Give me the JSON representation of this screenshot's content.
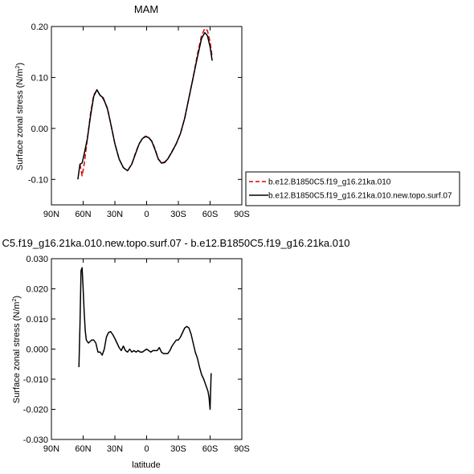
{
  "chart_data": [
    {
      "type": "line",
      "title": "MAM",
      "xlabel": "",
      "ylabel": "Surface zonal stress (N/m",
      "ylabel_sup": "2",
      "ylabel_close": ")",
      "xlim": [
        90,
        -90
      ],
      "ylim": [
        -0.15,
        0.2
      ],
      "x_ticks": [
        90,
        60,
        30,
        0,
        -30,
        -60,
        -90
      ],
      "x_tick_labels": [
        "90N",
        "60N",
        "30N",
        "0",
        "30S",
        "60S",
        "90S"
      ],
      "y_ticks": [
        0.2,
        0.1,
        0.0,
        -0.1
      ],
      "y_tick_labels": [
        "0.20",
        "0.10",
        "0.00",
        "-0.10"
      ],
      "legend": "right",
      "series": [
        {
          "name": "b.e12.B1850C5.f19_g16.21ka.010",
          "color": "#dd0000",
          "dash": true,
          "x": [
            63,
            61,
            59,
            56,
            53,
            50,
            47,
            44,
            41,
            37,
            34,
            30,
            26,
            22,
            18,
            14,
            10,
            7,
            4,
            1,
            -2,
            -5,
            -8,
            -11,
            -14,
            -17,
            -20,
            -24,
            -28,
            -32,
            -36,
            -40,
            -44,
            -48,
            -52,
            -55,
            -57.5,
            -60,
            -62
          ],
          "y": [
            -0.07,
            -0.093,
            -0.07,
            -0.02,
            0.03,
            0.066,
            0.075,
            0.065,
            0.058,
            0.04,
            0.01,
            -0.03,
            -0.06,
            -0.077,
            -0.083,
            -0.07,
            -0.045,
            -0.03,
            -0.02,
            -0.015,
            -0.018,
            -0.025,
            -0.04,
            -0.06,
            -0.067,
            -0.066,
            -0.06,
            -0.045,
            -0.03,
            -0.01,
            0.02,
            0.06,
            0.1,
            0.145,
            0.183,
            0.196,
            0.192,
            0.17,
            0.14
          ]
        },
        {
          "name": "b.e12.B1850C5.f19_g16.21ka.010.new.topo.surf.07",
          "color": "#000000",
          "dash": false,
          "x": [
            65,
            63,
            61,
            59,
            56,
            53,
            50,
            47,
            44,
            41,
            37,
            34,
            30,
            26,
            22,
            18,
            14,
            10,
            7,
            4,
            1,
            -2,
            -5,
            -8,
            -11,
            -14,
            -17,
            -20,
            -24,
            -28,
            -32,
            -36,
            -40,
            -44,
            -48,
            -52,
            -55,
            -57.5,
            -60,
            -62
          ],
          "y": [
            -0.1,
            -0.07,
            -0.068,
            -0.05,
            -0.02,
            0.025,
            0.063,
            0.076,
            0.065,
            0.06,
            0.038,
            0.01,
            -0.03,
            -0.06,
            -0.077,
            -0.083,
            -0.07,
            -0.047,
            -0.03,
            -0.02,
            -0.016,
            -0.018,
            -0.026,
            -0.042,
            -0.06,
            -0.068,
            -0.067,
            -0.06,
            -0.046,
            -0.03,
            -0.01,
            0.02,
            0.06,
            0.1,
            0.14,
            0.177,
            0.188,
            0.182,
            0.16,
            0.133
          ]
        }
      ]
    },
    {
      "type": "line",
      "title": "C5.f19_g16.21ka.010.new.topo.surf.07 - b.e12.B1850C5.f19_g16.21ka.010",
      "xlabel": "latitude",
      "ylabel": "Surface zonal stress (N/m",
      "ylabel_sup": "2",
      "ylabel_close": ")",
      "xlim": [
        90,
        -90
      ],
      "ylim": [
        -0.03,
        0.03
      ],
      "x_ticks": [
        90,
        60,
        30,
        0,
        -30,
        -60,
        -90
      ],
      "x_tick_labels": [
        "90N",
        "60N",
        "30N",
        "0",
        "30S",
        "60S",
        "90S"
      ],
      "y_ticks": [
        0.03,
        0.02,
        0.01,
        0.0,
        -0.01,
        -0.02,
        -0.03
      ],
      "y_tick_labels": [
        "0.030",
        "0.020",
        "0.010",
        "0.000",
        "-0.010",
        "-0.020",
        "-0.030"
      ],
      "series": [
        {
          "color": "#000000",
          "dash": false,
          "x": [
            64,
            63,
            62,
            61,
            60,
            59,
            58,
            57,
            55,
            52,
            50,
            48,
            46,
            44,
            42,
            40,
            38,
            36,
            34,
            32,
            30,
            28,
            26,
            24,
            22,
            20,
            18,
            16,
            14,
            12,
            10,
            8,
            6,
            4,
            2,
            0,
            -2,
            -4,
            -6,
            -8,
            -10,
            -12,
            -14,
            -16,
            -18,
            -20,
            -22,
            -24,
            -26,
            -28,
            -30,
            -32,
            -34,
            -36,
            -38,
            -40,
            -42,
            -44,
            -46,
            -48,
            -50,
            -52,
            -54,
            -56,
            -58,
            -59,
            -60,
            -61
          ],
          "y": [
            -0.006,
            0.008,
            0.026,
            0.027,
            0.02,
            0.012,
            0.006,
            0.003,
            0.002,
            0.003,
            0.003,
            0.002,
            -0.001,
            -0.001,
            -0.002,
            0.0,
            0.004,
            0.0055,
            0.0058,
            0.0048,
            0.0035,
            0.002,
            0.0005,
            -0.0005,
            0.001,
            -0.0005,
            -0.001,
            0.0,
            -0.001,
            -0.0005,
            -0.001,
            -0.0005,
            -0.001,
            -0.001,
            -0.0005,
            0.0,
            -0.0005,
            -0.001,
            -0.0005,
            -0.0005,
            -0.0005,
            0.0005,
            -0.001,
            -0.0015,
            -0.0015,
            -0.0015,
            -0.0005,
            0.001,
            0.002,
            0.003,
            0.003,
            0.004,
            0.0055,
            0.007,
            0.0075,
            0.007,
            0.005,
            0.002,
            -0.001,
            -0.003,
            -0.006,
            -0.0085,
            -0.01,
            -0.012,
            -0.014,
            -0.016,
            -0.02,
            -0.008
          ]
        }
      ]
    }
  ]
}
